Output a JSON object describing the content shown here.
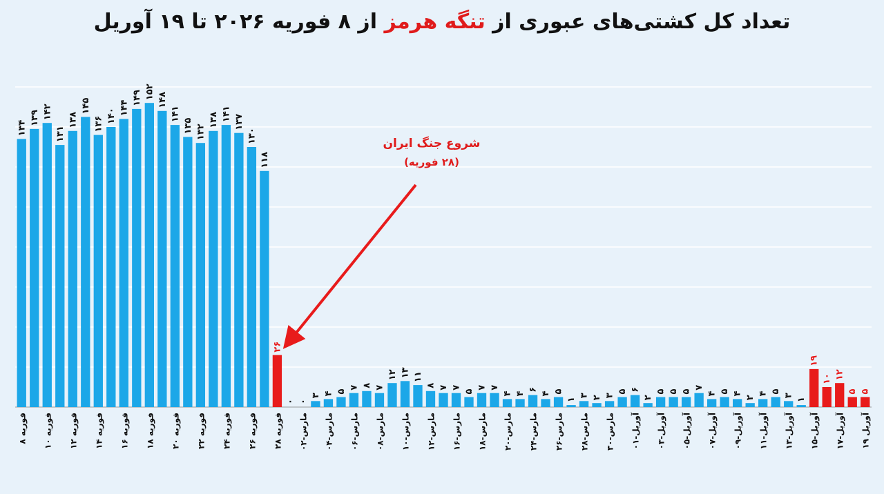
{
  "title": {
    "part1": "تعداد کل کشتی‌های عبوری از ",
    "highlight": "تنگه هرمز",
    "part2": " از ۸ فوریه ۲۰۲۶ تا ۱۹ آوریل"
  },
  "annotation": {
    "line1": "شروع جنگ ایران",
    "line2": "(۲۸ فوریه)"
  },
  "colors": {
    "background": "#e8f2fa",
    "bar_blue": "#1ca7e8",
    "bar_red": "#e81b1b",
    "grid": "#ffffff",
    "axis": "#999999"
  },
  "chart_data": {
    "type": "bar",
    "title": "تعداد کل کشتی‌های عبوری از تنگه هرمز از ۸ فوریه ۲۰۲۶ تا ۱۹ آوریل",
    "xlabel": "",
    "ylabel": "",
    "ylim": [
      0,
      160
    ],
    "grid": true,
    "legend": "none",
    "tick_labels": [
      "۸ فوریه",
      "۱۰ فوریه",
      "۱۲ فوریه",
      "۱۴ فوریه",
      "۱۶ فوریه",
      "۱۸ فوریه",
      "۲۰ فوریه",
      "۲۲ فوریه",
      "۲۴ فوریه",
      "۲۶ فوریه",
      "۲۸ فوریه",
      "۰۲-مارس",
      "۰۴-مارس",
      "۰۶-مارس",
      "۰۸-مارس",
      "۱۰-مارس",
      "۱۲-مارس",
      "۱۶-مارس",
      "۱۸-مارس",
      "۲۰-مارس",
      "۲۴-مارس",
      "۲۶-مارس",
      "۲۸-مارس",
      "۳۰-مارس",
      "۰۱-آوریل",
      "۰۳-آوریل",
      "۰۵-آوریل",
      "۰۷-آوریل",
      "۰۹-آوریل",
      "۱۱-آوریل",
      "۱۳-آوریل",
      "۱۵-آوریل",
      "۱۷-آوریل",
      "۱۹ آوریل"
    ],
    "values": [
      134,
      139,
      142,
      131,
      138,
      145,
      136,
      140,
      144,
      149,
      152,
      148,
      141,
      135,
      132,
      138,
      141,
      137,
      130,
      118,
      26,
      0,
      0,
      3,
      4,
      5,
      7,
      8,
      7,
      12,
      13,
      11,
      8,
      7,
      7,
      5,
      7,
      7,
      4,
      4,
      6,
      4,
      5,
      1,
      3,
      2,
      3,
      5,
      6,
      2,
      5,
      5,
      5,
      7,
      4,
      5,
      4,
      2,
      4,
      5,
      3,
      1,
      19,
      10,
      12,
      5,
      5
    ],
    "highlight": [
      false,
      false,
      false,
      false,
      false,
      false,
      false,
      false,
      false,
      false,
      false,
      false,
      false,
      false,
      false,
      false,
      false,
      false,
      false,
      false,
      true,
      false,
      false,
      false,
      false,
      false,
      false,
      false,
      false,
      false,
      false,
      false,
      false,
      false,
      false,
      false,
      false,
      false,
      false,
      false,
      false,
      false,
      false,
      false,
      false,
      false,
      false,
      false,
      false,
      false,
      false,
      false,
      false,
      false,
      false,
      false,
      false,
      false,
      false,
      false,
      false,
      false,
      true,
      true,
      true,
      true,
      true
    ],
    "labels": [
      "۱۳۴",
      "۱۳۹",
      "۱۴۲",
      "۱۳۱",
      "۱۳۸",
      "۱۴۵",
      "۱۳۶",
      "۱۴۰",
      "۱۴۴",
      "۱۴۹",
      "۱۵۲",
      "۱۴۸",
      "۱۴۱",
      "۱۳۵",
      "۱۳۲",
      "۱۳۸",
      "۱۴۱",
      "۱۳۷",
      "۱۳۰",
      "۱۱۸",
      "۲۶",
      "۰",
      "۰",
      "۳",
      "۴",
      "۵",
      "۷",
      "۸",
      "۷",
      "۱۲",
      "۱۳",
      "۱۱",
      "۸",
      "۷",
      "۷",
      "۵",
      "۷",
      "۷",
      "۴",
      "۴",
      "۶",
      "۴",
      "۵",
      "۱",
      "۳",
      "۲",
      "۳",
      "۵",
      "۶",
      "۲",
      "۵",
      "۵",
      "۵",
      "۷",
      "۴",
      "۵",
      "۴",
      "۲",
      "۴",
      "۵",
      "۳",
      "۱",
      "۱۹",
      "۱۰",
      "۱۲",
      "۵",
      "۵"
    ]
  }
}
